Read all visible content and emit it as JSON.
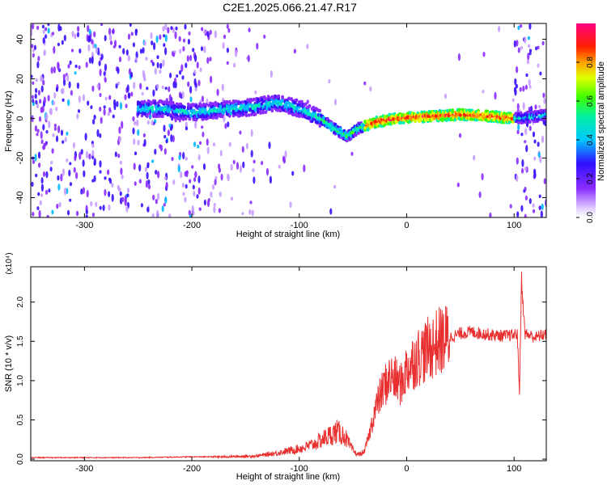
{
  "title": "C2E1.2025.066.21.47.R17",
  "chart_data": [
    {
      "type": "heatmap",
      "xlabel": "Height of straight line (km)",
      "ylabel": "Frequency (Hz)",
      "xlim": [
        -350,
        130
      ],
      "ylim": [
        -50,
        48
      ],
      "xticks": [
        -300,
        -200,
        -100,
        0,
        100
      ],
      "yticks": [
        -40,
        -20,
        0,
        20,
        40
      ],
      "colorbar": {
        "label": "Normalized spectral amplitude",
        "range": [
          0.0,
          1.0
        ],
        "ticks": [
          "0.0",
          "0.2",
          "0.4",
          "0.6",
          "0.8"
        ]
      },
      "signal_track": [
        {
          "x": -250,
          "y": 5
        },
        {
          "x": -230,
          "y": 5
        },
        {
          "x": -215,
          "y": 4
        },
        {
          "x": -200,
          "y": 3
        },
        {
          "x": -180,
          "y": 4
        },
        {
          "x": -160,
          "y": 5
        },
        {
          "x": -140,
          "y": 6
        },
        {
          "x": -120,
          "y": 8
        },
        {
          "x": -100,
          "y": 5
        },
        {
          "x": -80,
          "y": 0
        },
        {
          "x": -65,
          "y": -6
        },
        {
          "x": -55,
          "y": -9
        },
        {
          "x": -45,
          "y": -5
        },
        {
          "x": -30,
          "y": -2
        },
        {
          "x": -10,
          "y": 0
        },
        {
          "x": 20,
          "y": 1
        },
        {
          "x": 50,
          "y": 2
        },
        {
          "x": 80,
          "y": 1
        },
        {
          "x": 100,
          "y": 0
        },
        {
          "x": 120,
          "y": 1
        },
        {
          "x": 130,
          "y": 2
        }
      ]
    },
    {
      "type": "line",
      "xlabel": "Height of straight line (km)",
      "ylabel": "SNR (10 * v/v)",
      "y_multiplier": "(x10⁴)",
      "xlim": [
        -350,
        130
      ],
      "ylim": [
        -0.02,
        2.45
      ],
      "xticks": [
        -300,
        -200,
        -100,
        0,
        100
      ],
      "yticks": [
        "0.0",
        "0.5",
        "1.0",
        "1.5",
        "2.0"
      ],
      "series": [
        {
          "color": "#e83030",
          "x": [
            -350,
            -300,
            -250,
            -200,
            -170,
            -140,
            -120,
            -105,
            -95,
            -85,
            -75,
            -65,
            -58,
            -52,
            -48,
            -45,
            -40,
            -35,
            -30,
            -25,
            -20,
            -15,
            -10,
            -5,
            0,
            10,
            20,
            30,
            40,
            50,
            60,
            70,
            80,
            90,
            100,
            103,
            105,
            107,
            110,
            120,
            130
          ],
          "y": [
            0.02,
            0.02,
            0.02,
            0.03,
            0.03,
            0.04,
            0.08,
            0.12,
            0.15,
            0.2,
            0.28,
            0.35,
            0.3,
            0.15,
            0.08,
            0.06,
            0.08,
            0.3,
            0.6,
            0.8,
            0.95,
            1.05,
            1.0,
            0.95,
            1.15,
            1.3,
            1.4,
            1.5,
            1.55,
            1.6,
            1.62,
            1.6,
            1.58,
            1.57,
            1.58,
            1.6,
            0.85,
            2.3,
            1.6,
            1.55,
            1.6
          ]
        }
      ]
    }
  ]
}
